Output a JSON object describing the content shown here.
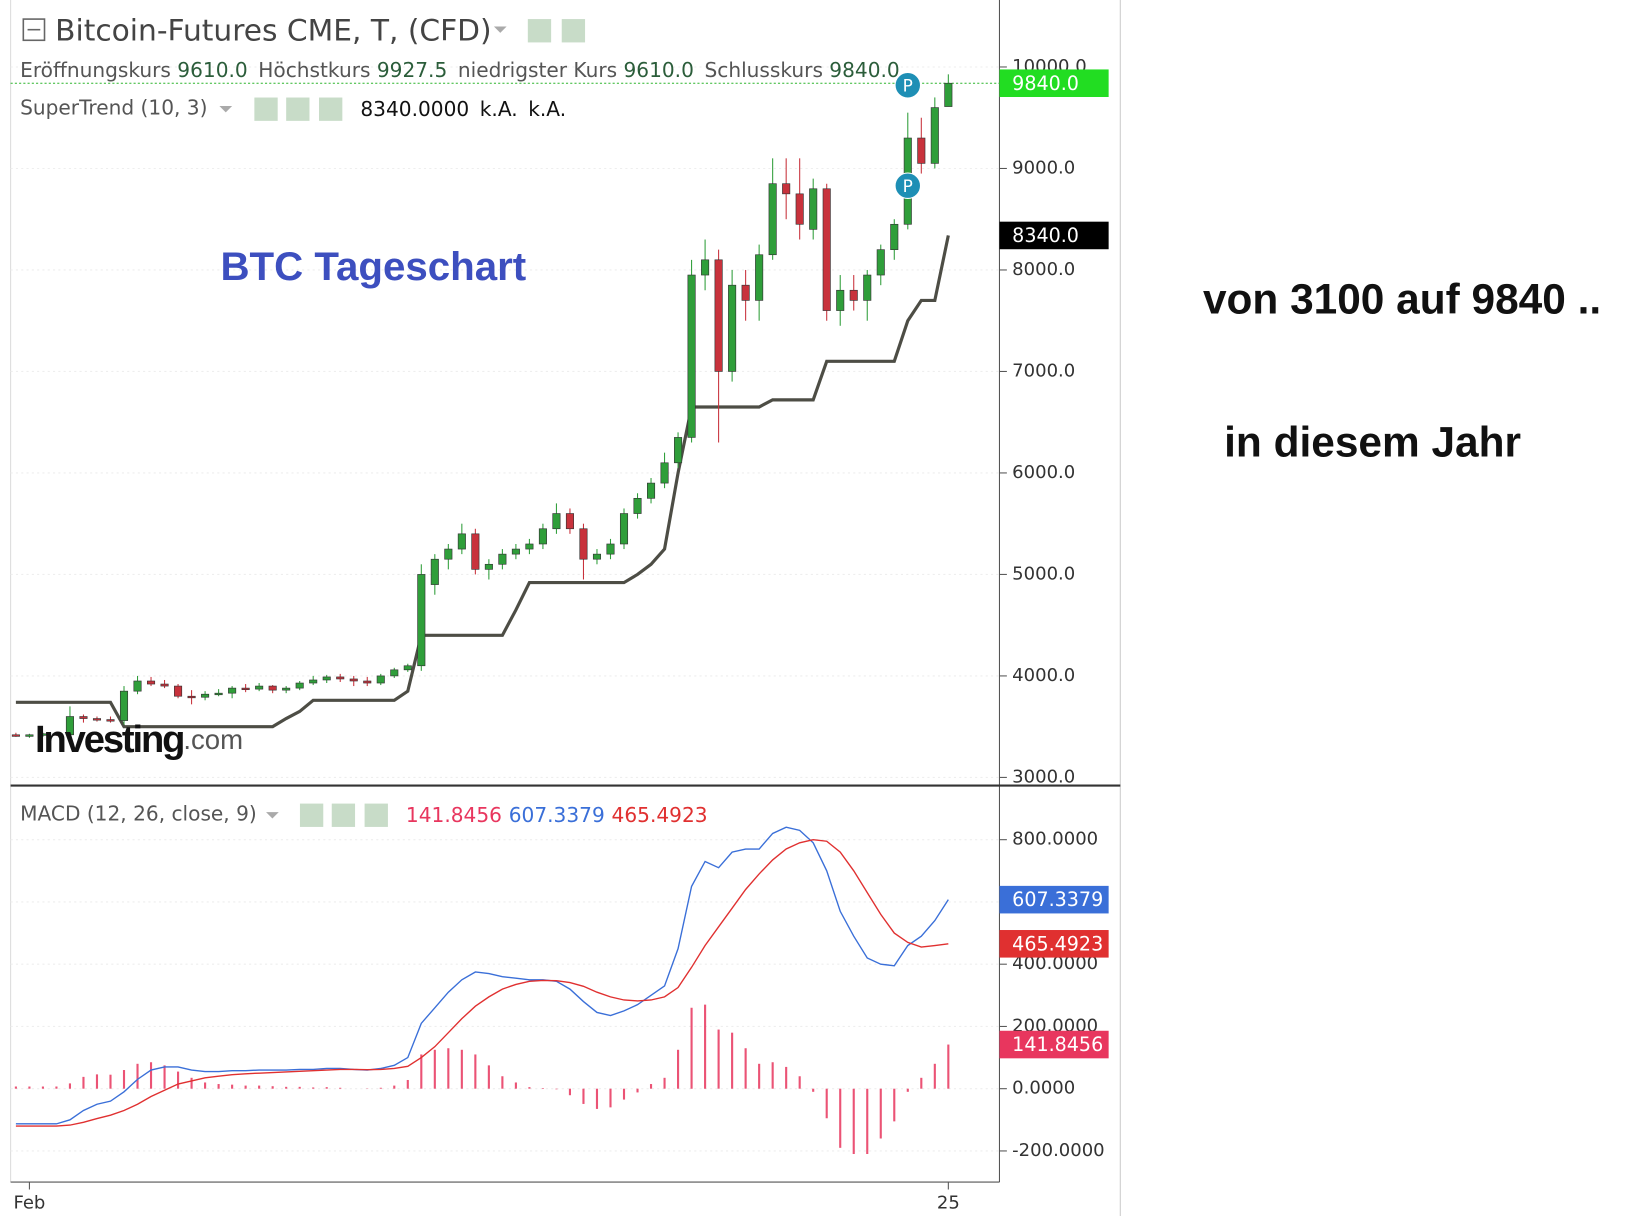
{
  "chart_data": [
    {
      "type": "candlestick",
      "title": "Bitcoin-Futures CME, T, (CFD)",
      "ohlc_legend": [
        {
          "label": "Eröffnungskurs",
          "value": 9610,
          "value_label": "9610.0"
        },
        {
          "label": "Höchstkurs",
          "value": 9927.5
        },
        {
          "label": "niedrigster Kurs",
          "value": 9610,
          "value_label": "9610.0"
        },
        {
          "label": "Schlusskurs",
          "value": 9840,
          "value_label": "9840.0"
        }
      ],
      "open": [
        3420,
        3410,
        3420,
        3430,
        3420,
        3600,
        3580,
        3570,
        3560,
        3850,
        3950,
        3920,
        3900,
        3800,
        3790,
        3820,
        3830,
        3880,
        3870,
        3900,
        3860,
        3880,
        3930,
        3960,
        3990,
        3970,
        3950,
        3930,
        4000,
        4060,
        4100,
        4900,
        5150,
        5250,
        5400,
        5050,
        5100,
        5200,
        5250,
        5300,
        5450,
        5600,
        5450,
        5150,
        5200,
        5300,
        5600,
        5750,
        5900,
        6100,
        6350,
        7950,
        8100,
        7000,
        7850,
        7700,
        8150,
        8850,
        8750,
        8400,
        8800,
        7600,
        7800,
        7700,
        7950,
        8200,
        8450,
        9300,
        9050,
        9610
      ],
      "high": [
        3440,
        3430,
        3440,
        3450,
        3700,
        3620,
        3600,
        3600,
        3900,
        4000,
        3990,
        3960,
        3920,
        3860,
        3850,
        3870,
        3900,
        3920,
        3930,
        3910,
        3900,
        3950,
        4000,
        4010,
        4020,
        4000,
        3990,
        4020,
        4080,
        4120,
        5100,
        5200,
        5300,
        5500,
        5450,
        5150,
        5250,
        5300,
        5350,
        5500,
        5700,
        5650,
        5500,
        5250,
        5350,
        5650,
        5800,
        5950,
        6200,
        6400,
        8100,
        8300,
        8200,
        8000,
        8000,
        8250,
        9100,
        9100,
        9100,
        8900,
        8850,
        7950,
        7950,
        8000,
        8250,
        8500,
        9550,
        9500,
        9700,
        9927.5
      ],
      "low": [
        3400,
        3390,
        3400,
        3410,
        3400,
        3540,
        3550,
        3540,
        3520,
        3820,
        3900,
        3880,
        3780,
        3720,
        3760,
        3800,
        3780,
        3840,
        3850,
        3830,
        3830,
        3860,
        3910,
        3930,
        3940,
        3900,
        3900,
        3910,
        3980,
        4040,
        4050,
        4800,
        5050,
        5200,
        5000,
        4950,
        5050,
        5150,
        5200,
        5250,
        5400,
        5400,
        4950,
        5100,
        5150,
        5250,
        5550,
        5700,
        5850,
        6050,
        6300,
        7800,
        6300,
        6900,
        7500,
        7500,
        8100,
        8500,
        8300,
        8300,
        7500,
        7450,
        7600,
        7500,
        7850,
        8100,
        8400,
        8950,
        9000,
        9610
      ],
      "close": [
        3410,
        3420,
        3430,
        3420,
        3600,
        3580,
        3570,
        3560,
        3850,
        3950,
        3920,
        3900,
        3800,
        3790,
        3820,
        3830,
        3880,
        3870,
        3900,
        3860,
        3880,
        3930,
        3960,
        3990,
        3970,
        3950,
        3930,
        4000,
        4060,
        4100,
        5000,
        5150,
        5250,
        5400,
        5050,
        5100,
        5200,
        5250,
        5300,
        5450,
        5600,
        5450,
        5150,
        5200,
        5300,
        5600,
        5750,
        5900,
        6100,
        6350,
        7950,
        8100,
        7000,
        7850,
        7700,
        8150,
        8850,
        8750,
        8450,
        8800,
        7600,
        7800,
        7700,
        7950,
        8200,
        8450,
        9300,
        9050,
        9600,
        9840
      ],
      "up_color": "#2f9e3a",
      "down_color": "#c8323c",
      "last_label": "9840.0",
      "last_color": "#22dd22",
      "indicator": {
        "name": "SuperTrend (10, 3)",
        "color": "#4d4d45",
        "values": [
          3740,
          3740,
          3740,
          3740,
          3740,
          3740,
          3740,
          3740,
          3500,
          3500,
          3500,
          3500,
          3500,
          3500,
          3500,
          3500,
          3500,
          3500,
          3500,
          3500,
          3580,
          3650,
          3760,
          3760,
          3760,
          3760,
          3760,
          3760,
          3760,
          3850,
          4400,
          4400,
          4400,
          4400,
          4400,
          4400,
          4400,
          4650,
          4920,
          4920,
          4920,
          4920,
          4920,
          4920,
          4920,
          4920,
          5000,
          5100,
          5250,
          6000,
          6650,
          6650,
          6650,
          6650,
          6650,
          6650,
          6720,
          6720,
          6720,
          6720,
          7100,
          7100,
          7100,
          7100,
          7100,
          7100,
          7500,
          7700,
          7700,
          8340
        ],
        "legend_value": "8340.0000",
        "legend_extra": [
          "k.A.",
          "k.A."
        ],
        "last_label": "8340.0",
        "last_color": "#000000"
      },
      "ylim": [
        2930,
        10660
      ],
      "yticks": [
        {
          "value": 3000,
          "label": "3000.0"
        },
        {
          "value": 4000,
          "label": "4000.0"
        },
        {
          "value": 5000,
          "label": "5000.0"
        },
        {
          "value": 6000,
          "label": "6000.0"
        },
        {
          "value": 7000,
          "label": "7000.0"
        },
        {
          "value": 8000,
          "label": "8000.0"
        },
        {
          "value": 9000,
          "label": "9000.0"
        },
        {
          "value": 10000,
          "label": "10000.0"
        }
      ],
      "grid": true,
      "annotation": "BTC Tageschart",
      "annotation_color": "#3d4fbf",
      "markers": [
        {
          "text": "P",
          "index": 66,
          "value": 9820
        },
        {
          "text": "P",
          "index": 66,
          "value": 8830
        }
      ],
      "marker_color": "#1e8fb5",
      "watermark": [
        "Investing",
        ".com"
      ],
      "comments": [
        "von 3100 auf 9840 ..",
        "in diesem Jahr"
      ]
    },
    {
      "type": "macd",
      "title": "MACD (12, 26, close, 9)",
      "categories": [
        null,
        "Feb",
        null,
        null,
        null,
        null,
        null,
        null,
        null,
        null,
        null,
        null,
        null,
        null,
        null,
        null,
        null,
        null,
        null,
        null,
        null,
        null,
        null,
        null,
        null,
        null,
        null,
        null,
        null,
        null,
        null,
        null,
        null,
        null,
        null,
        null,
        null,
        null,
        null,
        null,
        null,
        null,
        null,
        null,
        null,
        null,
        null,
        null,
        null,
        null,
        null,
        null,
        null,
        null,
        null,
        null,
        null,
        null,
        null,
        null,
        null,
        null,
        null,
        null,
        null,
        null,
        null,
        null,
        null,
        "25"
      ],
      "series": [
        {
          "kind": "bar",
          "color": "#e8365e",
          "values": [
            7,
            7,
            7,
            7,
            17,
            38,
            46,
            45,
            60,
            80,
            85,
            75,
            55,
            35,
            20,
            15,
            13,
            10,
            10,
            8,
            6,
            6,
            4,
            5,
            3,
            0,
            -1,
            3,
            10,
            28,
            110,
            125,
            130,
            125,
            110,
            75,
            40,
            20,
            5,
            2,
            -2,
            -21,
            -49,
            -65,
            -60,
            -35,
            -12,
            15,
            35,
            125,
            260,
            270,
            190,
            180,
            130,
            80,
            85,
            70,
            40,
            -10,
            -95,
            -190,
            -210,
            -210,
            -160,
            -105,
            -10,
            35,
            80,
            141.8456
          ]
        },
        {
          "kind": "line",
          "color": "#3a6fd8",
          "values": [
            -113,
            -113,
            -113,
            -113,
            -100,
            -70,
            -50,
            -40,
            -10,
            30,
            60,
            70,
            70,
            60,
            55,
            55,
            58,
            58,
            60,
            60,
            60,
            62,
            62,
            65,
            65,
            62,
            60,
            65,
            75,
            100,
            210,
            260,
            310,
            350,
            375,
            370,
            360,
            355,
            350,
            350,
            345,
            320,
            280,
            245,
            235,
            250,
            270,
            300,
            330,
            450,
            650,
            730,
            710,
            760,
            770,
            770,
            820,
            840,
            830,
            790,
            700,
            570,
            490,
            420,
            400,
            395,
            460,
            490,
            540,
            607.3379
          ]
        },
        {
          "kind": "line",
          "color": "#e03030",
          "values": [
            -120,
            -120,
            -120,
            -120,
            -117,
            -108,
            -96,
            -85,
            -70,
            -50,
            -25,
            -5,
            15,
            25,
            35,
            40,
            45,
            48,
            50,
            52,
            54,
            56,
            58,
            60,
            62,
            62,
            61,
            62,
            65,
            72,
            100,
            135,
            180,
            225,
            265,
            295,
            320,
            335,
            345,
            348,
            347,
            341,
            329,
            310,
            295,
            285,
            282,
            285,
            295,
            325,
            390,
            460,
            520,
            580,
            640,
            690,
            735,
            770,
            790,
            800,
            795,
            760,
            700,
            630,
            560,
            500,
            470,
            455,
            460,
            465.4923
          ]
        }
      ],
      "ylim": [
        -300,
        950
      ],
      "yticks": [
        {
          "value": -200,
          "label": "-200.0000"
        },
        {
          "value": 0,
          "label": "0.0000"
        },
        {
          "value": 200,
          "label": "200.0000"
        },
        {
          "value": 400,
          "label": "400.0000"
        },
        {
          "value": 600,
          "label": "600.0000"
        },
        {
          "value": 800,
          "label": "800.0000"
        }
      ],
      "grid": true
    }
  ]
}
